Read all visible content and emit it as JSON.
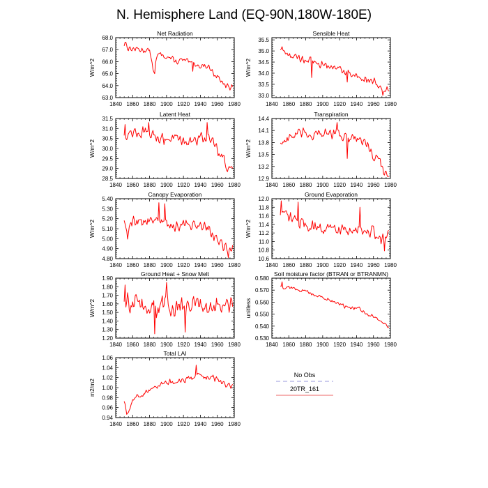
{
  "page_title": "N. Hemisphere Land (EQ-90N,180W-180E)",
  "legend": {
    "entries": [
      {
        "label": "No Obs",
        "color": "#9999dd",
        "style": "dashed"
      },
      {
        "label": "20TR_161",
        "color": "#ee6666",
        "style": "solid"
      }
    ]
  },
  "series_color": "#ff0000",
  "chart_data": [
    {
      "type": "line",
      "title": "Net Radiation",
      "ylabel": "W/m^2",
      "xlabel": "",
      "xlim": [
        1840,
        1980
      ],
      "ylim": [
        63.0,
        68.0
      ],
      "x_ticks": [
        1840,
        1860,
        1880,
        1900,
        1920,
        1940,
        1960,
        1980
      ],
      "y_ticks": [
        "63.0",
        "64.0",
        "65.0",
        "66.0",
        "67.0",
        "68.0"
      ],
      "x_start": 1850,
      "x_end": 1978,
      "anchors": [
        [
          1850,
          67.4
        ],
        [
          1851,
          67.7
        ],
        [
          1855,
          67.1
        ],
        [
          1870,
          67.0
        ],
        [
          1880,
          66.9
        ],
        [
          1885,
          65.2
        ],
        [
          1890,
          66.6
        ],
        [
          1900,
          66.5
        ],
        [
          1910,
          66.0
        ],
        [
          1920,
          66.1
        ],
        [
          1930,
          65.8
        ],
        [
          1940,
          65.7
        ],
        [
          1950,
          65.6
        ],
        [
          1955,
          65.1
        ],
        [
          1960,
          64.8
        ],
        [
          1965,
          64.3
        ],
        [
          1970,
          64.0
        ],
        [
          1975,
          63.7
        ],
        [
          1978,
          63.9
        ]
      ],
      "noise": 0.32,
      "spikes": [
        [
          1886,
          65.0
        ],
        [
          1931,
          65.2
        ]
      ]
    },
    {
      "type": "line",
      "title": "Sensible Heat",
      "ylabel": "W/m^2",
      "xlabel": "",
      "xlim": [
        1840,
        1980
      ],
      "ylim": [
        32.9,
        35.6
      ],
      "x_ticks": [
        1840,
        1860,
        1880,
        1900,
        1920,
        1940,
        1960,
        1980
      ],
      "y_ticks": [
        "33.0",
        "33.5",
        "34.0",
        "34.5",
        "35.0",
        "35.5"
      ],
      "x_start": 1850,
      "x_end": 1978,
      "anchors": [
        [
          1850,
          35.1
        ],
        [
          1860,
          34.8
        ],
        [
          1870,
          34.7
        ],
        [
          1880,
          34.6
        ],
        [
          1890,
          34.5
        ],
        [
          1900,
          34.4
        ],
        [
          1910,
          34.3
        ],
        [
          1920,
          34.2
        ],
        [
          1930,
          34.0
        ],
        [
          1940,
          33.9
        ],
        [
          1950,
          33.8
        ],
        [
          1960,
          33.6
        ],
        [
          1970,
          33.4
        ],
        [
          1978,
          33.2
        ]
      ],
      "noise": 0.22,
      "spikes": [
        [
          1887,
          33.8
        ],
        [
          1929,
          33.6
        ],
        [
          1971,
          33.0
        ]
      ]
    },
    {
      "type": "line",
      "title": "Latent Heat",
      "ylabel": "W/m^2",
      "xlabel": "",
      "xlim": [
        1840,
        1980
      ],
      "ylim": [
        28.5,
        31.5
      ],
      "x_ticks": [
        1840,
        1860,
        1880,
        1900,
        1920,
        1940,
        1960,
        1980
      ],
      "y_ticks": [
        "28.5",
        "29.0",
        "29.5",
        "30.0",
        "30.5",
        "31.0",
        "31.5"
      ],
      "x_start": 1850,
      "x_end": 1978,
      "anchors": [
        [
          1850,
          30.7
        ],
        [
          1860,
          30.8
        ],
        [
          1870,
          30.8
        ],
        [
          1880,
          30.7
        ],
        [
          1890,
          30.6
        ],
        [
          1900,
          30.5
        ],
        [
          1910,
          30.5
        ],
        [
          1920,
          30.4
        ],
        [
          1930,
          30.4
        ],
        [
          1940,
          30.5
        ],
        [
          1950,
          30.6
        ],
        [
          1955,
          30.3
        ],
        [
          1960,
          30.0
        ],
        [
          1965,
          29.7
        ],
        [
          1970,
          29.3
        ],
        [
          1975,
          28.9
        ],
        [
          1978,
          29.0
        ]
      ],
      "noise": 0.35,
      "spikes": [
        [
          1851,
          31.2
        ],
        [
          1879,
          31.3
        ],
        [
          1948,
          31.3
        ]
      ]
    },
    {
      "type": "line",
      "title": "Transpiration",
      "ylabel": "W/m^2",
      "xlabel": "",
      "xlim": [
        1840,
        1980
      ],
      "ylim": [
        12.9,
        14.4
      ],
      "x_ticks": [
        1840,
        1860,
        1880,
        1900,
        1920,
        1940,
        1960,
        1980
      ],
      "y_ticks": [
        "12.9",
        "13.2",
        "13.5",
        "13.8",
        "14.1",
        "14.4"
      ],
      "x_start": 1850,
      "x_end": 1978,
      "anchors": [
        [
          1850,
          13.8
        ],
        [
          1860,
          13.9
        ],
        [
          1870,
          14.0
        ],
        [
          1880,
          14.0
        ],
        [
          1890,
          14.0
        ],
        [
          1900,
          14.0
        ],
        [
          1910,
          14.0
        ],
        [
          1920,
          14.0
        ],
        [
          1930,
          13.9
        ],
        [
          1940,
          13.9
        ],
        [
          1950,
          13.8
        ],
        [
          1955,
          13.7
        ],
        [
          1960,
          13.5
        ],
        [
          1965,
          13.4
        ],
        [
          1970,
          13.2
        ],
        [
          1975,
          13.05
        ],
        [
          1978,
          13.1
        ]
      ],
      "noise": 0.17,
      "spikes": [
        [
          1917,
          14.3
        ],
        [
          1929,
          13.4
        ]
      ]
    },
    {
      "type": "line",
      "title": "Canopy Evaporation",
      "ylabel": "W/m^2",
      "xlabel": "",
      "xlim": [
        1840,
        1980
      ],
      "ylim": [
        4.8,
        5.4
      ],
      "x_ticks": [
        1840,
        1860,
        1880,
        1900,
        1920,
        1940,
        1960,
        1980
      ],
      "y_ticks": [
        "4.80",
        "4.90",
        "5.00",
        "5.10",
        "5.20",
        "5.30",
        "5.40"
      ],
      "x_start": 1850,
      "x_end": 1978,
      "anchors": [
        [
          1850,
          5.18
        ],
        [
          1854,
          5.02
        ],
        [
          1858,
          5.18
        ],
        [
          1870,
          5.18
        ],
        [
          1880,
          5.17
        ],
        [
          1890,
          5.18
        ],
        [
          1900,
          5.16
        ],
        [
          1910,
          5.12
        ],
        [
          1920,
          5.13
        ],
        [
          1930,
          5.15
        ],
        [
          1940,
          5.12
        ],
        [
          1950,
          5.12
        ],
        [
          1955,
          5.05
        ],
        [
          1960,
          4.98
        ],
        [
          1965,
          4.95
        ],
        [
          1970,
          4.9
        ],
        [
          1975,
          4.87
        ],
        [
          1978,
          4.91
        ]
      ],
      "noise": 0.07,
      "spikes": [
        [
          1891,
          5.36
        ],
        [
          1898,
          5.35
        ],
        [
          1973,
          4.81
        ]
      ]
    },
    {
      "type": "line",
      "title": "Ground Evaporation",
      "ylabel": "W/m^2",
      "xlabel": "",
      "xlim": [
        1840,
        1980
      ],
      "ylim": [
        10.6,
        12.0
      ],
      "x_ticks": [
        1840,
        1860,
        1880,
        1900,
        1920,
        1940,
        1960,
        1980
      ],
      "y_ticks": [
        "10.6",
        "10.8",
        "11.0",
        "11.2",
        "11.4",
        "11.6",
        "11.8",
        "12.0"
      ],
      "x_start": 1850,
      "x_end": 1978,
      "anchors": [
        [
          1850,
          11.6
        ],
        [
          1860,
          11.55
        ],
        [
          1870,
          11.5
        ],
        [
          1880,
          11.4
        ],
        [
          1890,
          11.35
        ],
        [
          1900,
          11.3
        ],
        [
          1910,
          11.3
        ],
        [
          1920,
          11.3
        ],
        [
          1930,
          11.25
        ],
        [
          1940,
          11.3
        ],
        [
          1950,
          11.3
        ],
        [
          1960,
          11.2
        ],
        [
          1970,
          11.05
        ],
        [
          1978,
          11.1
        ]
      ],
      "noise": 0.19,
      "spikes": [
        [
          1851,
          11.95
        ],
        [
          1871,
          11.92
        ],
        [
          1944,
          11.8
        ],
        [
          1973,
          10.78
        ]
      ]
    },
    {
      "type": "line",
      "title": "Ground Heat + Snow Melt",
      "ylabel": "W/m^2",
      "xlabel": "",
      "xlim": [
        1840,
        1980
      ],
      "ylim": [
        1.2,
        1.9
      ],
      "x_ticks": [
        1840,
        1860,
        1880,
        1900,
        1920,
        1940,
        1960,
        1980
      ],
      "y_ticks": [
        "1.20",
        "1.30",
        "1.40",
        "1.50",
        "1.60",
        "1.70",
        "1.80",
        "1.90"
      ],
      "x_start": 1850,
      "x_end": 1978,
      "anchors": [
        [
          1850,
          1.6
        ],
        [
          1870,
          1.58
        ],
        [
          1890,
          1.57
        ],
        [
          1910,
          1.57
        ],
        [
          1930,
          1.57
        ],
        [
          1950,
          1.57
        ],
        [
          1978,
          1.57
        ]
      ],
      "noise": 0.15,
      "spikes": [
        [
          1851,
          1.82
        ],
        [
          1886,
          1.25
        ],
        [
          1900,
          1.85
        ],
        [
          1922,
          1.27
        ]
      ]
    },
    {
      "type": "line",
      "title": "Soil moisture factor (BTRAN or BTRANMN)",
      "ylabel": "unitless",
      "xlabel": "",
      "xlim": [
        1840,
        1980
      ],
      "ylim": [
        0.53,
        0.58
      ],
      "x_ticks": [
        1840,
        1860,
        1880,
        1900,
        1920,
        1940,
        1960,
        1980
      ],
      "y_ticks": [
        "0.530",
        "0.540",
        "0.550",
        "0.560",
        "0.570",
        "0.580"
      ],
      "x_start": 1850,
      "x_end": 1978,
      "anchors": [
        [
          1850,
          0.573
        ],
        [
          1860,
          0.572
        ],
        [
          1870,
          0.571
        ],
        [
          1880,
          0.569
        ],
        [
          1890,
          0.566
        ],
        [
          1900,
          0.564
        ],
        [
          1910,
          0.561
        ],
        [
          1920,
          0.558
        ],
        [
          1930,
          0.556
        ],
        [
          1940,
          0.555
        ],
        [
          1950,
          0.552
        ],
        [
          1960,
          0.548
        ],
        [
          1970,
          0.543
        ],
        [
          1978,
          0.54
        ]
      ],
      "noise": 0.0022,
      "spikes": [
        [
          1852,
          0.577
        ]
      ]
    },
    {
      "type": "line",
      "title": "Total LAI",
      "ylabel": "m2/m2",
      "xlabel": "",
      "xlim": [
        1840,
        1980
      ],
      "ylim": [
        0.94,
        1.06
      ],
      "x_ticks": [
        1840,
        1860,
        1880,
        1900,
        1920,
        1940,
        1960,
        1980
      ],
      "y_ticks": [
        "0.94",
        "0.96",
        "0.98",
        "1.00",
        "1.02",
        "1.04",
        "1.06"
      ],
      "x_start": 1850,
      "x_end": 1978,
      "anchors": [
        [
          1850,
          0.97
        ],
        [
          1853,
          0.95
        ],
        [
          1856,
          0.96
        ],
        [
          1860,
          0.975
        ],
        [
          1870,
          0.985
        ],
        [
          1880,
          0.995
        ],
        [
          1890,
          1.005
        ],
        [
          1900,
          1.01
        ],
        [
          1910,
          1.01
        ],
        [
          1920,
          1.015
        ],
        [
          1930,
          1.02
        ],
        [
          1936,
          1.03
        ],
        [
          1945,
          1.02
        ],
        [
          1955,
          1.02
        ],
        [
          1965,
          1.01
        ],
        [
          1970,
          1.0
        ],
        [
          1978,
          1.005
        ]
      ],
      "noise": 0.008,
      "spikes": [
        [
          1935,
          1.045
        ],
        [
          1854,
          0.949
        ]
      ]
    }
  ]
}
